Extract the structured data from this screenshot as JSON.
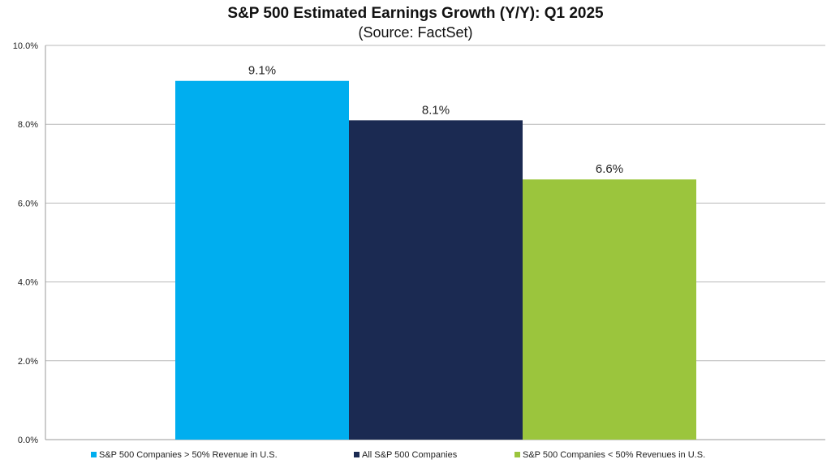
{
  "chart_data": {
    "type": "bar",
    "title": "S&P 500 Estimated Earnings Growth (Y/Y): Q1 2025",
    "subtitle": "(Source: FactSet)",
    "xlabel": "",
    "ylabel": "",
    "ylim": [
      0,
      10
    ],
    "y_ticks": [
      "0.0%",
      "2.0%",
      "4.0%",
      "6.0%",
      "8.0%",
      "10.0%"
    ],
    "grid": true,
    "legend_position": "bottom",
    "series": [
      {
        "name": "S&P 500 Companies > 50% Revenue in U.S.",
        "value": 9.1,
        "label": "9.1%",
        "color": "#00AEEF"
      },
      {
        "name": "All S&P 500 Companies",
        "value": 8.1,
        "label": "8.1%",
        "color": "#1B2A52"
      },
      {
        "name": "S&P 500 Companies < 50% Revenues in U.S.",
        "value": 6.6,
        "label": "6.6%",
        "color": "#9BC53D"
      }
    ]
  }
}
